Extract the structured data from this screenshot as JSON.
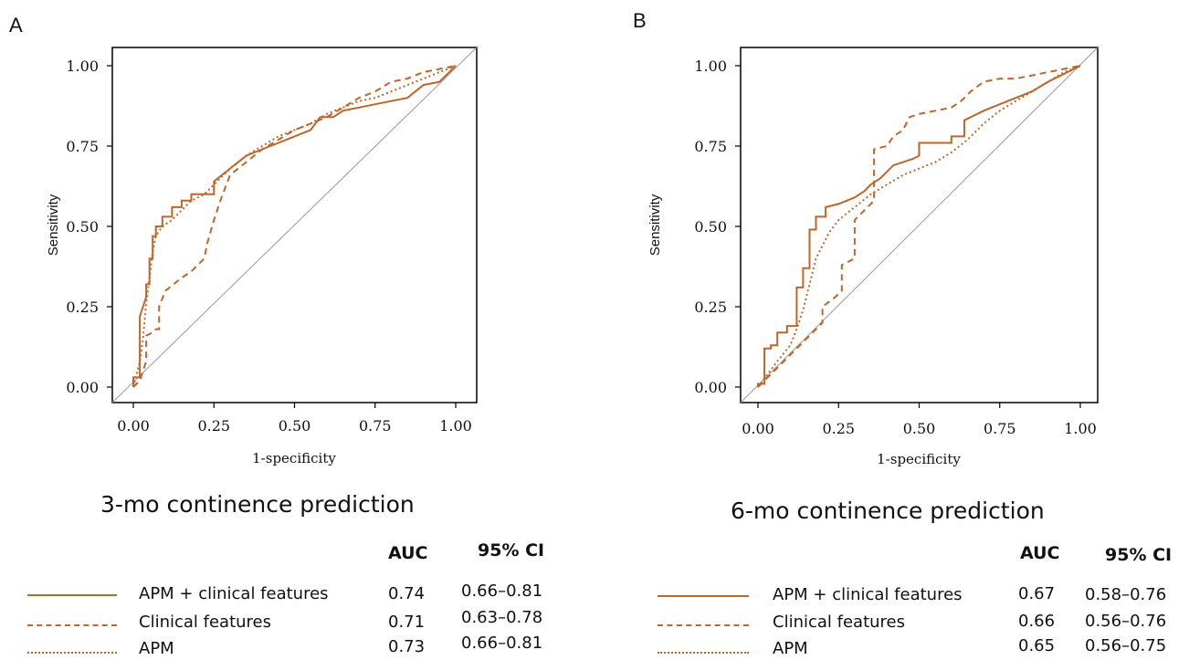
{
  "colors": {
    "line": "#c0652a",
    "diagonal": "#999999",
    "axis": "#000000"
  },
  "chart_data": [
    {
      "type": "line",
      "panel": "A",
      "subtitle": "3-mo continence prediction",
      "xlabel": "1-specificity",
      "ylabel": "Sensitivity",
      "xlim": [
        0,
        1
      ],
      "ylim": [
        0,
        1
      ],
      "xticks": [
        "0.00",
        "0.25",
        "0.50",
        "0.75",
        "1.00"
      ],
      "yticks": [
        "0.00",
        "0.25",
        "0.50",
        "0.75",
        "1.00"
      ],
      "legend_headers": {
        "auc": "AUC",
        "ci": "95% CI"
      },
      "series": [
        {
          "name": "APM + clinical features",
          "style": "solid",
          "auc": "0.74",
          "ci": "0.66–0.81",
          "x": [
            0,
            0,
            0.02,
            0.02,
            0.04,
            0.04,
            0.05,
            0.05,
            0.06,
            0.06,
            0.07,
            0.07,
            0.09,
            0.09,
            0.12,
            0.12,
            0.15,
            0.15,
            0.18,
            0.18,
            0.25,
            0.25,
            0.3,
            0.35,
            0.4,
            0.45,
            0.5,
            0.55,
            0.58,
            0.62,
            0.65,
            0.7,
            0.75,
            0.85,
            0.9,
            0.95,
            1.0
          ],
          "y": [
            0,
            0.03,
            0.03,
            0.22,
            0.28,
            0.32,
            0.32,
            0.4,
            0.4,
            0.47,
            0.47,
            0.5,
            0.5,
            0.53,
            0.53,
            0.56,
            0.56,
            0.58,
            0.58,
            0.6,
            0.6,
            0.64,
            0.68,
            0.72,
            0.74,
            0.76,
            0.78,
            0.8,
            0.84,
            0.84,
            0.86,
            0.87,
            0.88,
            0.9,
            0.94,
            0.95,
            1.0
          ]
        },
        {
          "name": "Clinical features",
          "style": "dashed",
          "auc": "0.71",
          "ci": "0.63–0.78",
          "x": [
            0,
            0.02,
            0.03,
            0.04,
            0.04,
            0.06,
            0.07,
            0.08,
            0.08,
            0.1,
            0.15,
            0.18,
            0.2,
            0.22,
            0.23,
            0.25,
            0.27,
            0.3,
            0.35,
            0.4,
            0.45,
            0.5,
            0.55,
            0.6,
            0.65,
            0.7,
            0.75,
            0.8,
            0.85,
            0.9,
            0.95,
            1.0
          ],
          "y": [
            0,
            0.02,
            0.05,
            0.08,
            0.16,
            0.17,
            0.18,
            0.18,
            0.25,
            0.3,
            0.34,
            0.36,
            0.38,
            0.4,
            0.45,
            0.52,
            0.58,
            0.66,
            0.7,
            0.74,
            0.77,
            0.8,
            0.82,
            0.84,
            0.87,
            0.9,
            0.92,
            0.95,
            0.96,
            0.98,
            0.99,
            1.0
          ]
        },
        {
          "name": "APM",
          "style": "dotted",
          "auc": "0.73",
          "ci": "0.66–0.81",
          "x": [
            0,
            0.01,
            0.02,
            0.03,
            0.04,
            0.05,
            0.06,
            0.07,
            0.09,
            0.12,
            0.15,
            0.18,
            0.22,
            0.25,
            0.3,
            0.35,
            0.4,
            0.45,
            0.5,
            0.55,
            0.6,
            0.65,
            0.7,
            0.75,
            0.8,
            0.85,
            0.9,
            0.95,
            1.0
          ],
          "y": [
            0,
            0.04,
            0.08,
            0.15,
            0.26,
            0.34,
            0.42,
            0.47,
            0.5,
            0.52,
            0.55,
            0.58,
            0.6,
            0.63,
            0.68,
            0.72,
            0.75,
            0.78,
            0.8,
            0.82,
            0.85,
            0.87,
            0.89,
            0.9,
            0.92,
            0.94,
            0.96,
            0.98,
            1.0
          ]
        }
      ]
    },
    {
      "type": "line",
      "panel": "B",
      "subtitle": "6-mo continence prediction",
      "xlabel": "1-specificity",
      "ylabel": "Sensitivity",
      "xlim": [
        0,
        1
      ],
      "ylim": [
        0,
        1
      ],
      "xticks": [
        "0.00",
        "0.25",
        "0.50",
        "0.75",
        "1.00"
      ],
      "yticks": [
        "0.00",
        "0.25",
        "0.50",
        "0.75",
        "1.00"
      ],
      "legend_headers": {
        "auc": "AUC",
        "ci": "95% CI"
      },
      "series": [
        {
          "name": "APM + clinical features",
          "style": "solid",
          "auc": "0.67",
          "ci": "0.58–0.76",
          "x": [
            0,
            0,
            0.02,
            0.02,
            0.04,
            0.04,
            0.06,
            0.06,
            0.09,
            0.09,
            0.12,
            0.12,
            0.14,
            0.14,
            0.16,
            0.16,
            0.18,
            0.18,
            0.21,
            0.21,
            0.25,
            0.3,
            0.33,
            0.35,
            0.38,
            0.4,
            0.42,
            0.45,
            0.48,
            0.5,
            0.5,
            0.6,
            0.6,
            0.64,
            0.64,
            0.7,
            0.75,
            0.8,
            0.85,
            0.9,
            1.0
          ],
          "y": [
            0,
            0.01,
            0.01,
            0.12,
            0.12,
            0.13,
            0.13,
            0.17,
            0.17,
            0.19,
            0.19,
            0.31,
            0.31,
            0.37,
            0.37,
            0.49,
            0.49,
            0.53,
            0.53,
            0.56,
            0.57,
            0.59,
            0.61,
            0.63,
            0.65,
            0.67,
            0.69,
            0.7,
            0.71,
            0.72,
            0.76,
            0.76,
            0.78,
            0.78,
            0.83,
            0.86,
            0.88,
            0.9,
            0.92,
            0.95,
            1.0
          ]
        },
        {
          "name": "Clinical features",
          "style": "dashed",
          "auc": "0.66",
          "ci": "0.56–0.76",
          "x": [
            0,
            0.03,
            0.06,
            0.1,
            0.13,
            0.15,
            0.2,
            0.2,
            0.24,
            0.26,
            0.26,
            0.3,
            0.3,
            0.33,
            0.36,
            0.36,
            0.4,
            0.42,
            0.45,
            0.47,
            0.5,
            0.55,
            0.6,
            0.63,
            0.66,
            0.7,
            0.75,
            0.8,
            0.85,
            0.9,
            0.95,
            1.0
          ],
          "y": [
            0,
            0.03,
            0.06,
            0.1,
            0.13,
            0.15,
            0.2,
            0.25,
            0.28,
            0.3,
            0.38,
            0.4,
            0.52,
            0.55,
            0.58,
            0.74,
            0.75,
            0.78,
            0.8,
            0.84,
            0.85,
            0.86,
            0.87,
            0.89,
            0.92,
            0.95,
            0.96,
            0.96,
            0.97,
            0.98,
            0.99,
            1.0
          ]
        },
        {
          "name": "APM",
          "style": "dotted",
          "auc": "0.65",
          "ci": "0.56–0.75",
          "x": [
            0,
            0.03,
            0.06,
            0.1,
            0.12,
            0.14,
            0.16,
            0.18,
            0.2,
            0.22,
            0.25,
            0.3,
            0.35,
            0.4,
            0.45,
            0.5,
            0.55,
            0.6,
            0.65,
            0.7,
            0.75,
            0.8,
            0.85,
            0.9,
            0.95,
            1.0
          ],
          "y": [
            0,
            0.04,
            0.08,
            0.13,
            0.18,
            0.24,
            0.32,
            0.4,
            0.44,
            0.48,
            0.52,
            0.56,
            0.6,
            0.63,
            0.66,
            0.68,
            0.7,
            0.73,
            0.77,
            0.82,
            0.86,
            0.89,
            0.92,
            0.95,
            0.98,
            1.0
          ]
        }
      ]
    }
  ]
}
